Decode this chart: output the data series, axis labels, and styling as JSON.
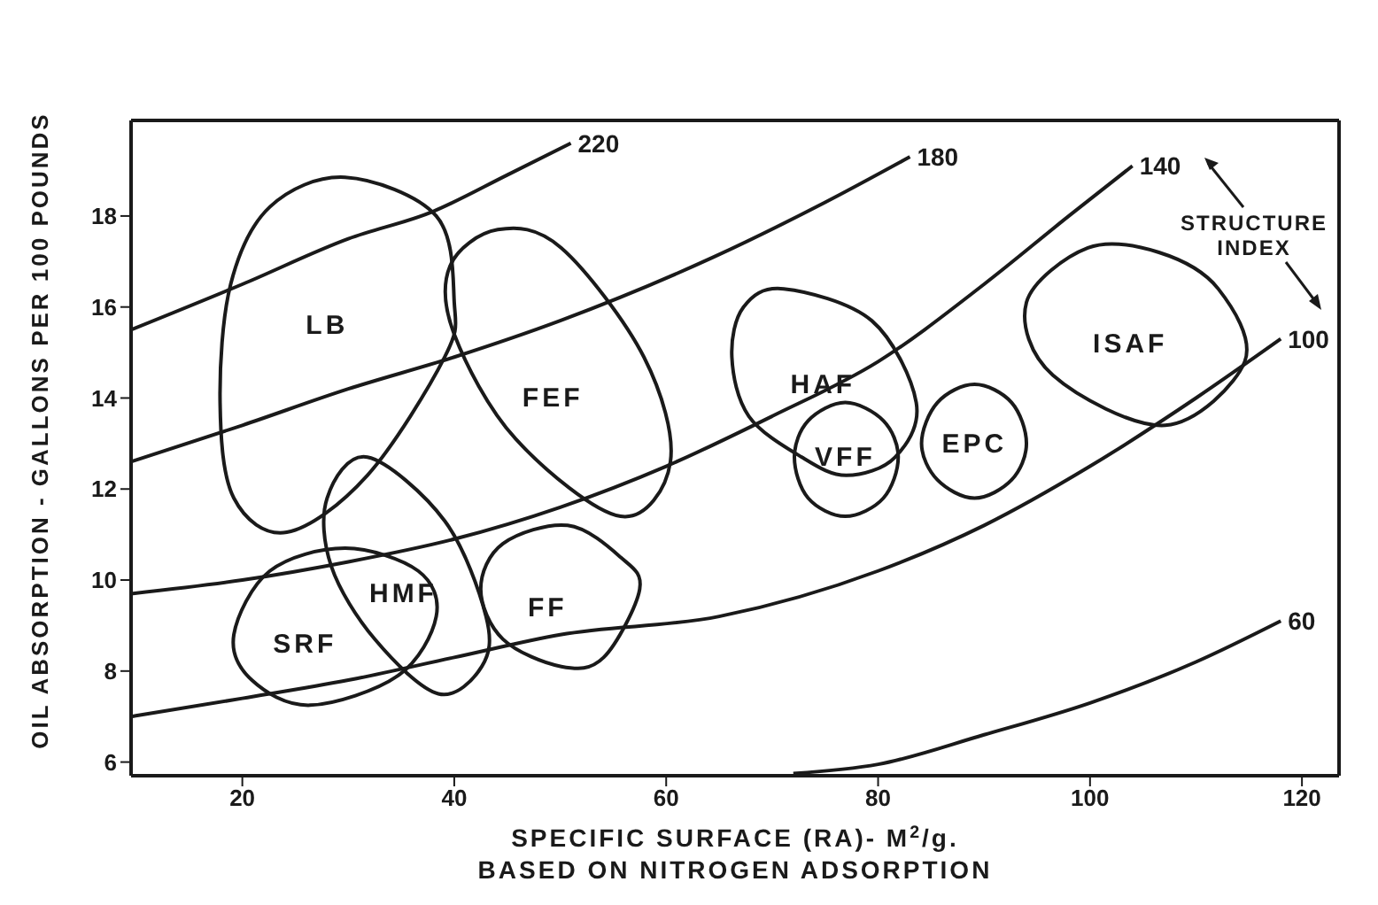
{
  "chart_data": {
    "type": "line",
    "xlabel": "SPECIFIC SURFACE (RA)- M$^{2}$/g.\nBASED ON NITROGEN ADSORPTION",
    "ylabel": "OIL ABSORPTION - GALLONS PER 100 POUNDS",
    "xlim": [
      9.5,
      123.5
    ],
    "ylim": [
      5.7,
      20.1
    ],
    "xticks": [
      20,
      40,
      60,
      80,
      100,
      120
    ],
    "yticks": [
      6,
      8,
      10,
      12,
      14,
      16,
      18
    ],
    "annotations": [
      "STRUCTURE INDEX",
      "LB",
      "FEF",
      "HMF",
      "SRF",
      "FF",
      "HAF",
      "VFF",
      "EPC",
      "ISAF"
    ],
    "series": [
      {
        "name": "220",
        "color": "#1a1a1a",
        "x": [
          9.5,
          20,
          30,
          38,
          45,
          51
        ],
        "values": [
          15.5,
          16.5,
          17.5,
          18.1,
          18.9,
          19.6
        ]
      },
      {
        "name": "180",
        "color": "#1a1a1a",
        "x": [
          9.5,
          20,
          30,
          40,
          50,
          64.5,
          75,
          83
        ],
        "values": [
          12.6,
          13.4,
          14.2,
          14.9,
          15.7,
          17.1,
          18.3,
          19.3
        ]
      },
      {
        "name": "140",
        "color": "#1a1a1a",
        "x": [
          9.5,
          20,
          30,
          40,
          50,
          60,
          70,
          80,
          90,
          98,
          104
        ],
        "values": [
          9.7,
          10,
          10.4,
          10.9,
          11.6,
          12.5,
          13.6,
          14.8,
          16.5,
          18,
          19.1
        ]
      },
      {
        "name": "100",
        "color": "#1a1a1a",
        "x": [
          9.5,
          20,
          30,
          40,
          50,
          65,
          80,
          90,
          100,
          110,
          118
        ],
        "values": [
          7,
          7.4,
          7.8,
          8.3,
          8.8,
          9.2,
          10.2,
          11.2,
          12.5,
          14,
          15.3
        ]
      },
      {
        "name": "60",
        "color": "#1a1a1a",
        "x": [
          72,
          80,
          90,
          100,
          110,
          118
        ],
        "values": [
          5.75,
          5.95,
          6.6,
          7.3,
          8.2,
          9.1
        ]
      }
    ]
  }
}
